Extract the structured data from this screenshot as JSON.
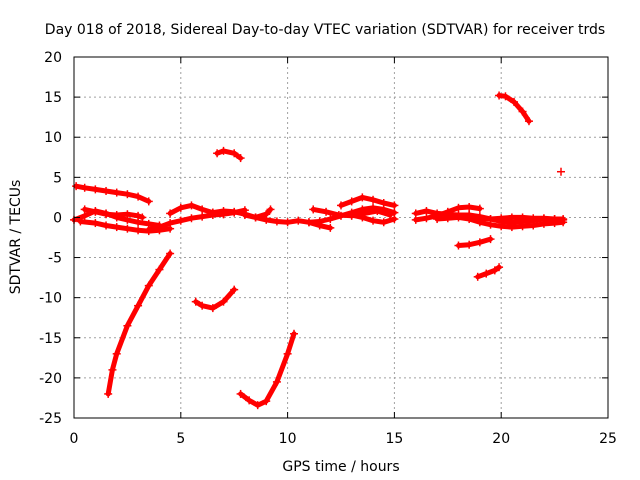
{
  "chart_data": {
    "type": "scatter",
    "title": "Day 018 of 2018, Sidereal Day-to-day VTEC variation (SDTVAR) for receiver trds",
    "xlabel": "GPS time / hours",
    "ylabel": "SDTVAR / TECUs",
    "xlim": [
      0,
      25
    ],
    "ylim": [
      -25,
      20
    ],
    "xticks": [
      "0",
      "5",
      "10",
      "15",
      "20",
      "25"
    ],
    "yticks": [
      "-25",
      "-20",
      "-15",
      "-10",
      "-5",
      "0",
      "5",
      "10",
      "15",
      "20"
    ],
    "grid": true,
    "marker_color": "#ff0000",
    "series": [
      {
        "x": [
          0.1,
          0.5,
          1.0,
          1.5,
          2.0,
          2.5,
          3.0,
          3.5
        ],
        "y": [
          3.9,
          3.7,
          3.5,
          3.3,
          3.1,
          2.9,
          2.6,
          2.0
        ]
      },
      {
        "x": [
          0.0,
          0.5,
          1.0,
          1.5,
          2.0,
          2.5,
          3.0,
          3.5,
          4.0
        ],
        "y": [
          -0.3,
          0.2,
          0.8,
          0.5,
          0.0,
          -0.3,
          -0.6,
          -0.8,
          -1.0
        ]
      },
      {
        "x": [
          0.5,
          1.0,
          1.5,
          2.0,
          2.5,
          3.0,
          3.2
        ],
        "y": [
          1.0,
          0.7,
          0.4,
          0.3,
          0.4,
          0.2,
          0.0
        ]
      },
      {
        "x": [
          0.3,
          1.0,
          1.5,
          2.0,
          2.5,
          3.0,
          3.5,
          4.0,
          4.5
        ],
        "y": [
          -0.5,
          -0.7,
          -1.0,
          -1.2,
          -1.4,
          -1.6,
          -1.7,
          -1.6,
          -1.4
        ]
      },
      {
        "x": [
          3.5,
          4.0,
          4.5,
          5.0,
          5.5,
          6.0,
          6.5,
          7.0
        ],
        "y": [
          -1.5,
          -1.2,
          -0.7,
          -0.4,
          -0.1,
          0.1,
          0.3,
          0.4
        ]
      },
      {
        "x": [
          4.5,
          5.0,
          5.5,
          6.0,
          6.5,
          7.0,
          7.5,
          8.0
        ],
        "y": [
          0.5,
          1.2,
          1.5,
          1.0,
          0.6,
          0.4,
          0.6,
          0.9
        ]
      },
      {
        "x": [
          6.5,
          7.0,
          7.5,
          8.0,
          8.5,
          9.0,
          9.5,
          10.0,
          10.5,
          11.0,
          11.5,
          12.0
        ],
        "y": [
          0.6,
          0.8,
          0.7,
          0.4,
          0.0,
          -0.3,
          -0.5,
          -0.6,
          -0.4,
          -0.6,
          -1.0,
          -1.3
        ]
      },
      {
        "x": [
          8.0,
          8.5,
          9.0,
          9.2
        ],
        "y": [
          0.3,
          0.0,
          0.4,
          1.0
        ]
      },
      {
        "x": [
          11.0,
          11.5,
          12.0,
          12.5,
          13.0,
          13.5,
          14.0,
          14.5,
          15.0
        ],
        "y": [
          -0.6,
          -0.5,
          -0.2,
          0.2,
          0.6,
          1.0,
          1.2,
          1.0,
          0.6
        ]
      },
      {
        "x": [
          11.2,
          11.8,
          12.4,
          13.0,
          13.6,
          14.2,
          14.8
        ],
        "y": [
          1.0,
          0.7,
          0.3,
          0.2,
          0.5,
          0.8,
          0.3
        ]
      },
      {
        "x": [
          12.5,
          13.0,
          13.5,
          14.0,
          14.5,
          15.0
        ],
        "y": [
          1.5,
          2.0,
          2.5,
          2.2,
          1.8,
          1.5
        ]
      },
      {
        "x": [
          13.0,
          13.5,
          14.0,
          14.5,
          15.0
        ],
        "y": [
          0.3,
          0.0,
          -0.4,
          -0.6,
          -0.2
        ]
      },
      {
        "x": [
          16.0,
          16.5,
          17.0,
          17.5,
          18.0,
          18.5,
          19.0,
          19.5,
          20.0,
          20.5,
          21.0,
          21.5,
          22.0,
          22.5,
          22.9
        ],
        "y": [
          0.5,
          0.8,
          0.5,
          0.4,
          0.3,
          0.3,
          0.1,
          -0.2,
          -0.5,
          -0.6,
          -0.5,
          -0.4,
          -0.2,
          -0.2,
          -0.3
        ]
      },
      {
        "x": [
          16.0,
          16.5,
          17.0,
          17.5,
          18.0,
          18.5,
          19.0
        ],
        "y": [
          -0.3,
          -0.1,
          0.2,
          0.7,
          1.2,
          1.3,
          1.1
        ]
      },
      {
        "x": [
          17.0,
          17.5,
          18.0,
          18.5,
          19.0,
          19.5,
          20.0,
          20.5,
          21.0,
          21.5,
          22.0,
          22.5,
          22.9
        ],
        "y": [
          -0.2,
          -0.1,
          0.0,
          -0.2,
          -0.6,
          -0.9,
          -1.1,
          -1.2,
          -1.1,
          -1.0,
          -0.8,
          -0.7,
          -0.6
        ]
      },
      {
        "x": [
          18.5,
          19.0,
          19.5,
          20.0,
          20.5,
          21.0,
          21.5,
          22.0,
          22.5,
          22.9
        ],
        "y": [
          0.3,
          -0.1,
          -0.2,
          -0.1,
          0.0,
          0.0,
          -0.1,
          -0.1,
          -0.2,
          -0.2
        ]
      },
      {
        "x": [
          1.6,
          1.8,
          2.0,
          2.5,
          3.0,
          3.5,
          4.0,
          4.5
        ],
        "y": [
          -22.0,
          -19.0,
          -17.0,
          -13.5,
          -11.0,
          -8.5,
          -6.5,
          -4.5
        ]
      },
      {
        "x": [
          5.7,
          6.0,
          6.5,
          7.0,
          7.5
        ],
        "y": [
          -10.5,
          -11.0,
          -11.3,
          -10.5,
          -9.0
        ]
      },
      {
        "x": [
          7.8,
          8.2,
          8.6,
          9.0,
          9.5,
          10.0,
          10.3
        ],
        "y": [
          -22.0,
          -22.8,
          -23.4,
          -22.9,
          -20.5,
          -17.0,
          -14.5
        ]
      },
      {
        "x": [
          6.7,
          7.0,
          7.5,
          7.8
        ],
        "y": [
          8.0,
          8.3,
          8.0,
          7.4
        ]
      },
      {
        "x": [
          18.0,
          18.5,
          19.0,
          19.5
        ],
        "y": [
          -3.5,
          -3.4,
          -3.1,
          -2.7
        ]
      },
      {
        "x": [
          18.9,
          19.3,
          19.7,
          19.9
        ],
        "y": [
          -7.4,
          -7.0,
          -6.6,
          -6.2
        ]
      },
      {
        "x": [
          19.9,
          20.2,
          20.6,
          21.0,
          21.3
        ],
        "y": [
          15.2,
          15.1,
          14.4,
          13.2,
          12.0
        ]
      },
      {
        "x": [
          22.8
        ],
        "y": [
          5.7
        ]
      }
    ]
  }
}
